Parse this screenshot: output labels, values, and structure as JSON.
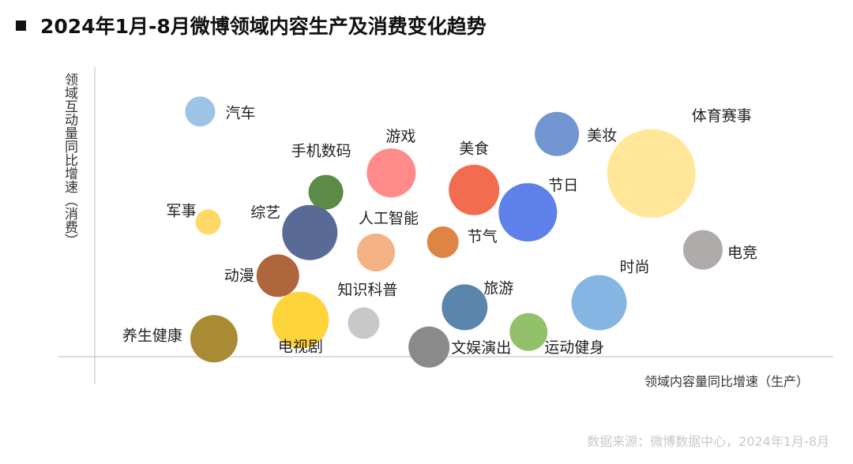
{
  "title": "2024年1月-8月微博领域内容生产及消费变化趋势",
  "source": "数据来源：微博数据中心，2024年1月-8月",
  "chart_data": {
    "type": "bubble",
    "title": "2024年1月-8月微博领域内容生产及消费变化趋势",
    "xlabel": "领域内容量同比增速（生产）",
    "ylabel": "领域互动量同比增速（消费）",
    "xlim": [
      0,
      100
    ],
    "ylim": [
      0,
      100
    ],
    "grid": false,
    "legend": "none",
    "points": [
      {
        "label": "汽车",
        "x": 14.5,
        "y": 86.3,
        "size": 19,
        "color": "#9dc3e6"
      },
      {
        "label": "军事",
        "x": 15.6,
        "y": 47.4,
        "size": 16,
        "color": "#ffd966"
      },
      {
        "label": "养生健康",
        "x": 16.4,
        "y": 6.3,
        "size": 30,
        "color": "#a98a35"
      },
      {
        "label": "动漫",
        "x": 25.2,
        "y": 28.5,
        "size": 27,
        "color": "#b0663c"
      },
      {
        "label": "手机数码",
        "x": 31.8,
        "y": 57.9,
        "size": 22,
        "color": "#5c8a47"
      },
      {
        "label": "综艺",
        "x": 29.6,
        "y": 43.7,
        "size": 35,
        "color": "#5a6a96"
      },
      {
        "label": "电视剧",
        "x": 28.3,
        "y": 12.9,
        "size": 36,
        "color": "#ffd43b"
      },
      {
        "label": "知识科普",
        "x": 37.0,
        "y": 11.8,
        "size": 20,
        "color": "#c8c8c8"
      },
      {
        "label": "人工智能",
        "x": 38.7,
        "y": 36.7,
        "size": 24,
        "color": "#f4b183"
      },
      {
        "label": "游戏",
        "x": 40.8,
        "y": 64.7,
        "size": 31,
        "color": "#ff8a8a"
      },
      {
        "label": "文娱演出",
        "x": 46.0,
        "y": 3.4,
        "size": 26,
        "color": "#8a8a8a"
      },
      {
        "label": "美食",
        "x": 52.2,
        "y": 58.7,
        "size": 32,
        "color": "#f26c4f"
      },
      {
        "label": "节气",
        "x": 47.9,
        "y": 40.3,
        "size": 20,
        "color": "#de8445"
      },
      {
        "label": "旅游",
        "x": 50.9,
        "y": 17.4,
        "size": 29,
        "color": "#5a86ae"
      },
      {
        "label": "节日",
        "x": 59.6,
        "y": 50.8,
        "size": 37,
        "color": "#5e80ea"
      },
      {
        "label": "运动健身",
        "x": 59.7,
        "y": 8.7,
        "size": 24,
        "color": "#93c06a"
      },
      {
        "label": "美妆",
        "x": 63.6,
        "y": 78.4,
        "size": 28,
        "color": "#7195d0"
      },
      {
        "label": "时尚",
        "x": 69.4,
        "y": 19.0,
        "size": 35,
        "color": "#85b5e3"
      },
      {
        "label": "体育赛事",
        "x": 76.6,
        "y": 64.5,
        "size": 56,
        "color": "#ffe699"
      },
      {
        "label": "电竞",
        "x": 83.7,
        "y": 37.6,
        "size": 25,
        "color": "#b0abab"
      }
    ]
  }
}
